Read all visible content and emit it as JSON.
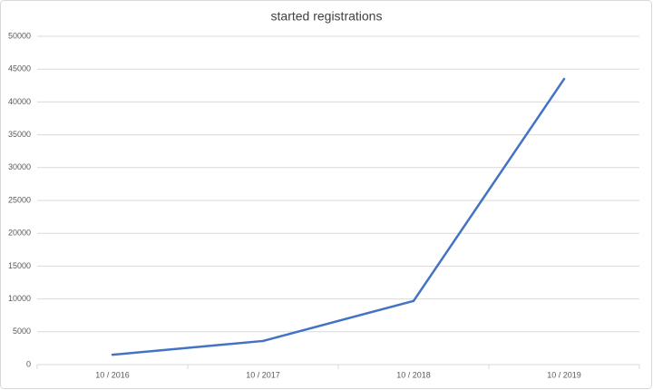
{
  "chart_data": {
    "type": "line",
    "title": "started registrations",
    "categories": [
      "10 / 2016",
      "10 / 2017",
      "10 / 2018",
      "10 / 2019"
    ],
    "series": [
      {
        "name": "started registrations",
        "color": "#4472c4",
        "values": [
          1500,
          3600,
          9700,
          43500
        ]
      }
    ],
    "ylim": [
      0,
      50000
    ],
    "yticks": [
      0,
      5000,
      10000,
      15000,
      20000,
      25000,
      30000,
      35000,
      40000,
      45000,
      50000
    ],
    "grid": true
  }
}
